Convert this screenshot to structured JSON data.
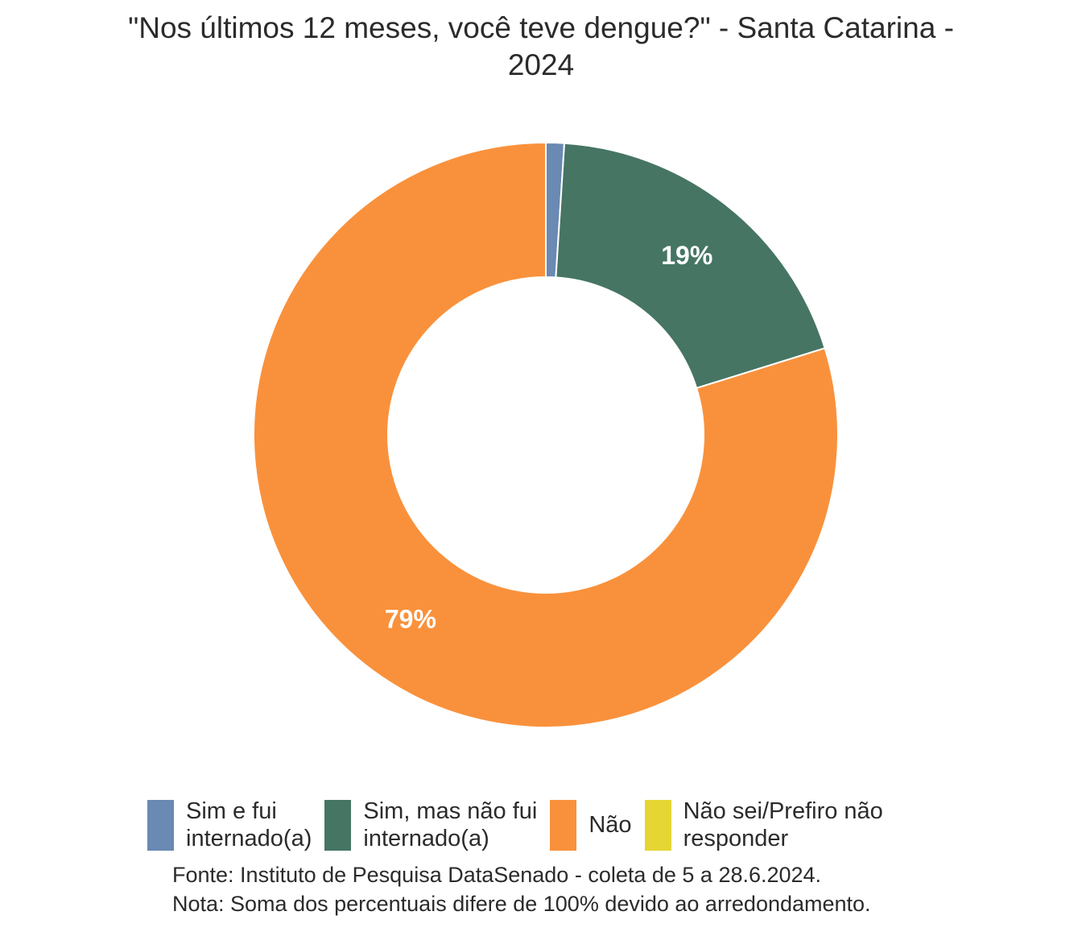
{
  "chart_data": {
    "type": "pie",
    "style": "donut",
    "title_lines": [
      "\"Nos últimos 12 meses, você teve dengue?\" - Santa Catarina -",
      "2024"
    ],
    "categories": [
      "Sim e fui internado(a)",
      "Sim, mas não fui internado(a)",
      "Não",
      "Não sei/Prefiro não responder"
    ],
    "legend_lines": [
      [
        "Sim e fui",
        "internado(a)"
      ],
      [
        "Sim, mas não fui",
        "internado(a)"
      ],
      [
        "Não"
      ],
      [
        "Não sei/Prefiro não",
        "responder"
      ]
    ],
    "values": [
      1,
      19,
      79,
      0
    ],
    "data_labels": [
      "",
      "19%",
      "79%",
      ""
    ],
    "colors": [
      "#6a89b3",
      "#467564",
      "#f9913c",
      "#e5d634"
    ],
    "legend_position": "bottom",
    "source": "Fonte: Instituto de Pesquisa DataSenado - coleta de 5 a 28.6.2024.",
    "note": "Nota: Soma dos percentuais difere de 100% devido ao arredondamento."
  }
}
